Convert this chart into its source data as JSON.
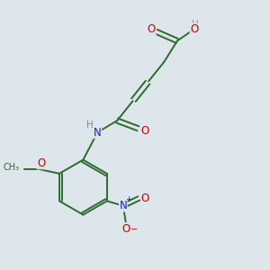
{
  "background_color": "#dde6ea",
  "bond_color": "#2d6b30",
  "atom_colors": {
    "O": "#cc0000",
    "N": "#2222cc",
    "H": "#888888",
    "C": "#2d6b30"
  },
  "figsize": [
    3.0,
    3.0
  ],
  "dpi": 100
}
